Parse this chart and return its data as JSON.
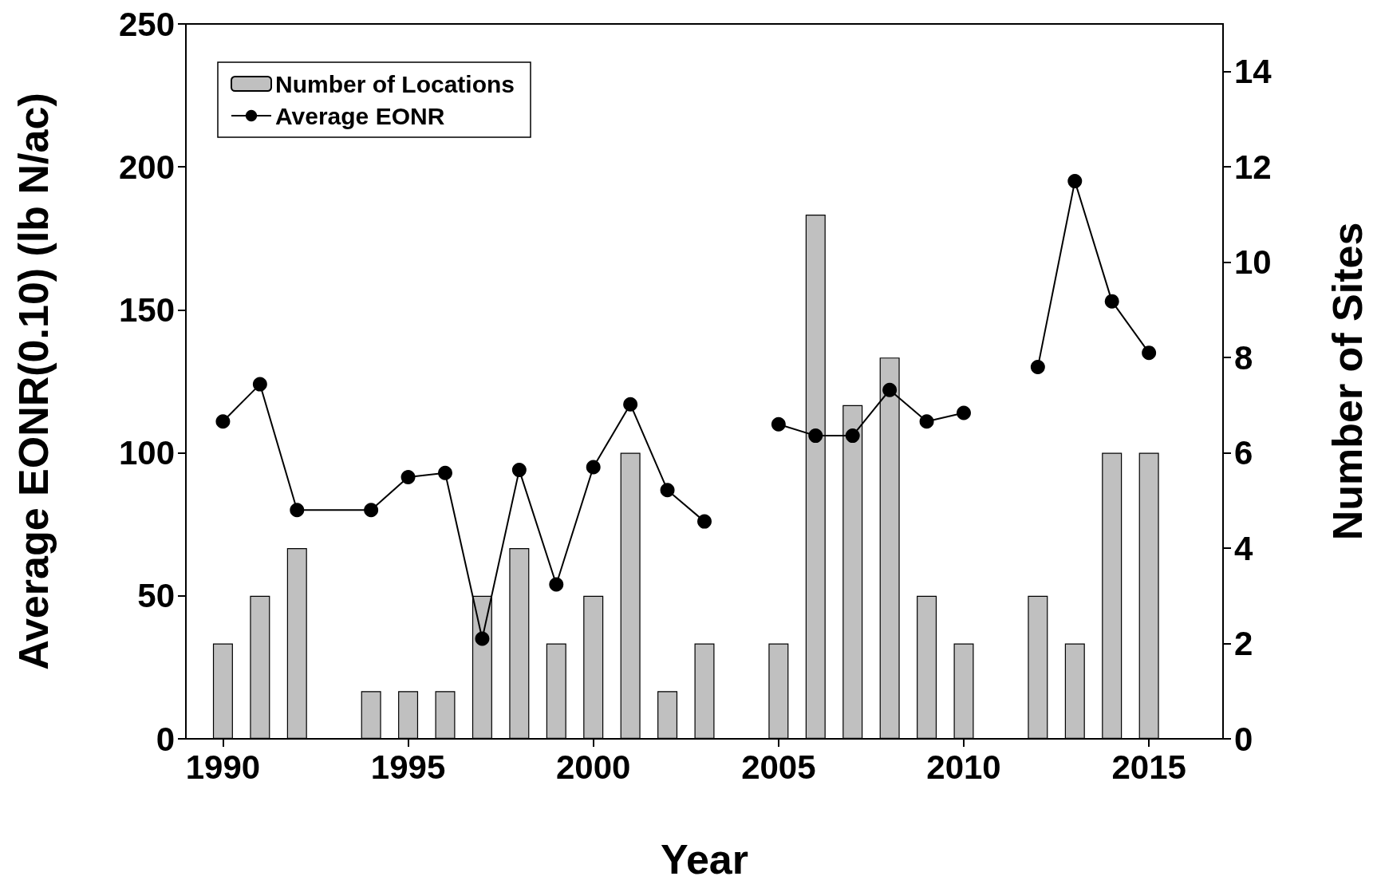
{
  "chart_data": {
    "type": "line",
    "xlabel": "Year",
    "ylabel": "Average EONR(0.10) (lb N/ac)",
    "y2label": "Number of Sites",
    "xlim": [
      1989,
      2017
    ],
    "xticks": [
      1990,
      1995,
      2000,
      2005,
      2010,
      2015
    ],
    "ylim": [
      0,
      250
    ],
    "yticks": [
      0,
      50,
      100,
      150,
      200,
      250
    ],
    "y2lim": [
      0,
      15
    ],
    "y2ticks": [
      0,
      2,
      4,
      6,
      8,
      10,
      12,
      14
    ],
    "grid": false,
    "legend": "top left",
    "marker": "circle",
    "line_style": "solid",
    "series": [
      {
        "name": "Number of Locations",
        "type": "bar",
        "axis": "y2",
        "color": "#c0c0c0",
        "x": [
          1990,
          1991,
          1992,
          1994,
          1995,
          1996,
          1997,
          1998,
          1999,
          2000,
          2001,
          2002,
          2003,
          2005,
          2006,
          2007,
          2008,
          2009,
          2010,
          2012,
          2013,
          2014,
          2015
        ],
        "values": [
          2,
          3,
          4,
          1,
          1,
          1,
          3,
          4,
          2,
          3,
          6,
          1,
          2,
          2,
          11,
          7,
          8,
          3,
          2,
          3,
          2,
          6,
          6
        ]
      },
      {
        "name": "Average EONR",
        "color": "#000000",
        "x": [
          1990,
          1991,
          1992,
          1994,
          1995,
          1996,
          1997,
          1998,
          1999,
          2000,
          2001,
          2002,
          2003,
          2004,
          2005,
          2006,
          2007,
          2008,
          2009,
          2010,
          2011,
          2012,
          2013,
          2014,
          2015
        ],
        "values": [
          111,
          124,
          80,
          80,
          91.5,
          93,
          35,
          94,
          54,
          95,
          117,
          87,
          76,
          null,
          110,
          106,
          106,
          122,
          111,
          114,
          null,
          130,
          195,
          153,
          135
        ]
      }
    ]
  }
}
